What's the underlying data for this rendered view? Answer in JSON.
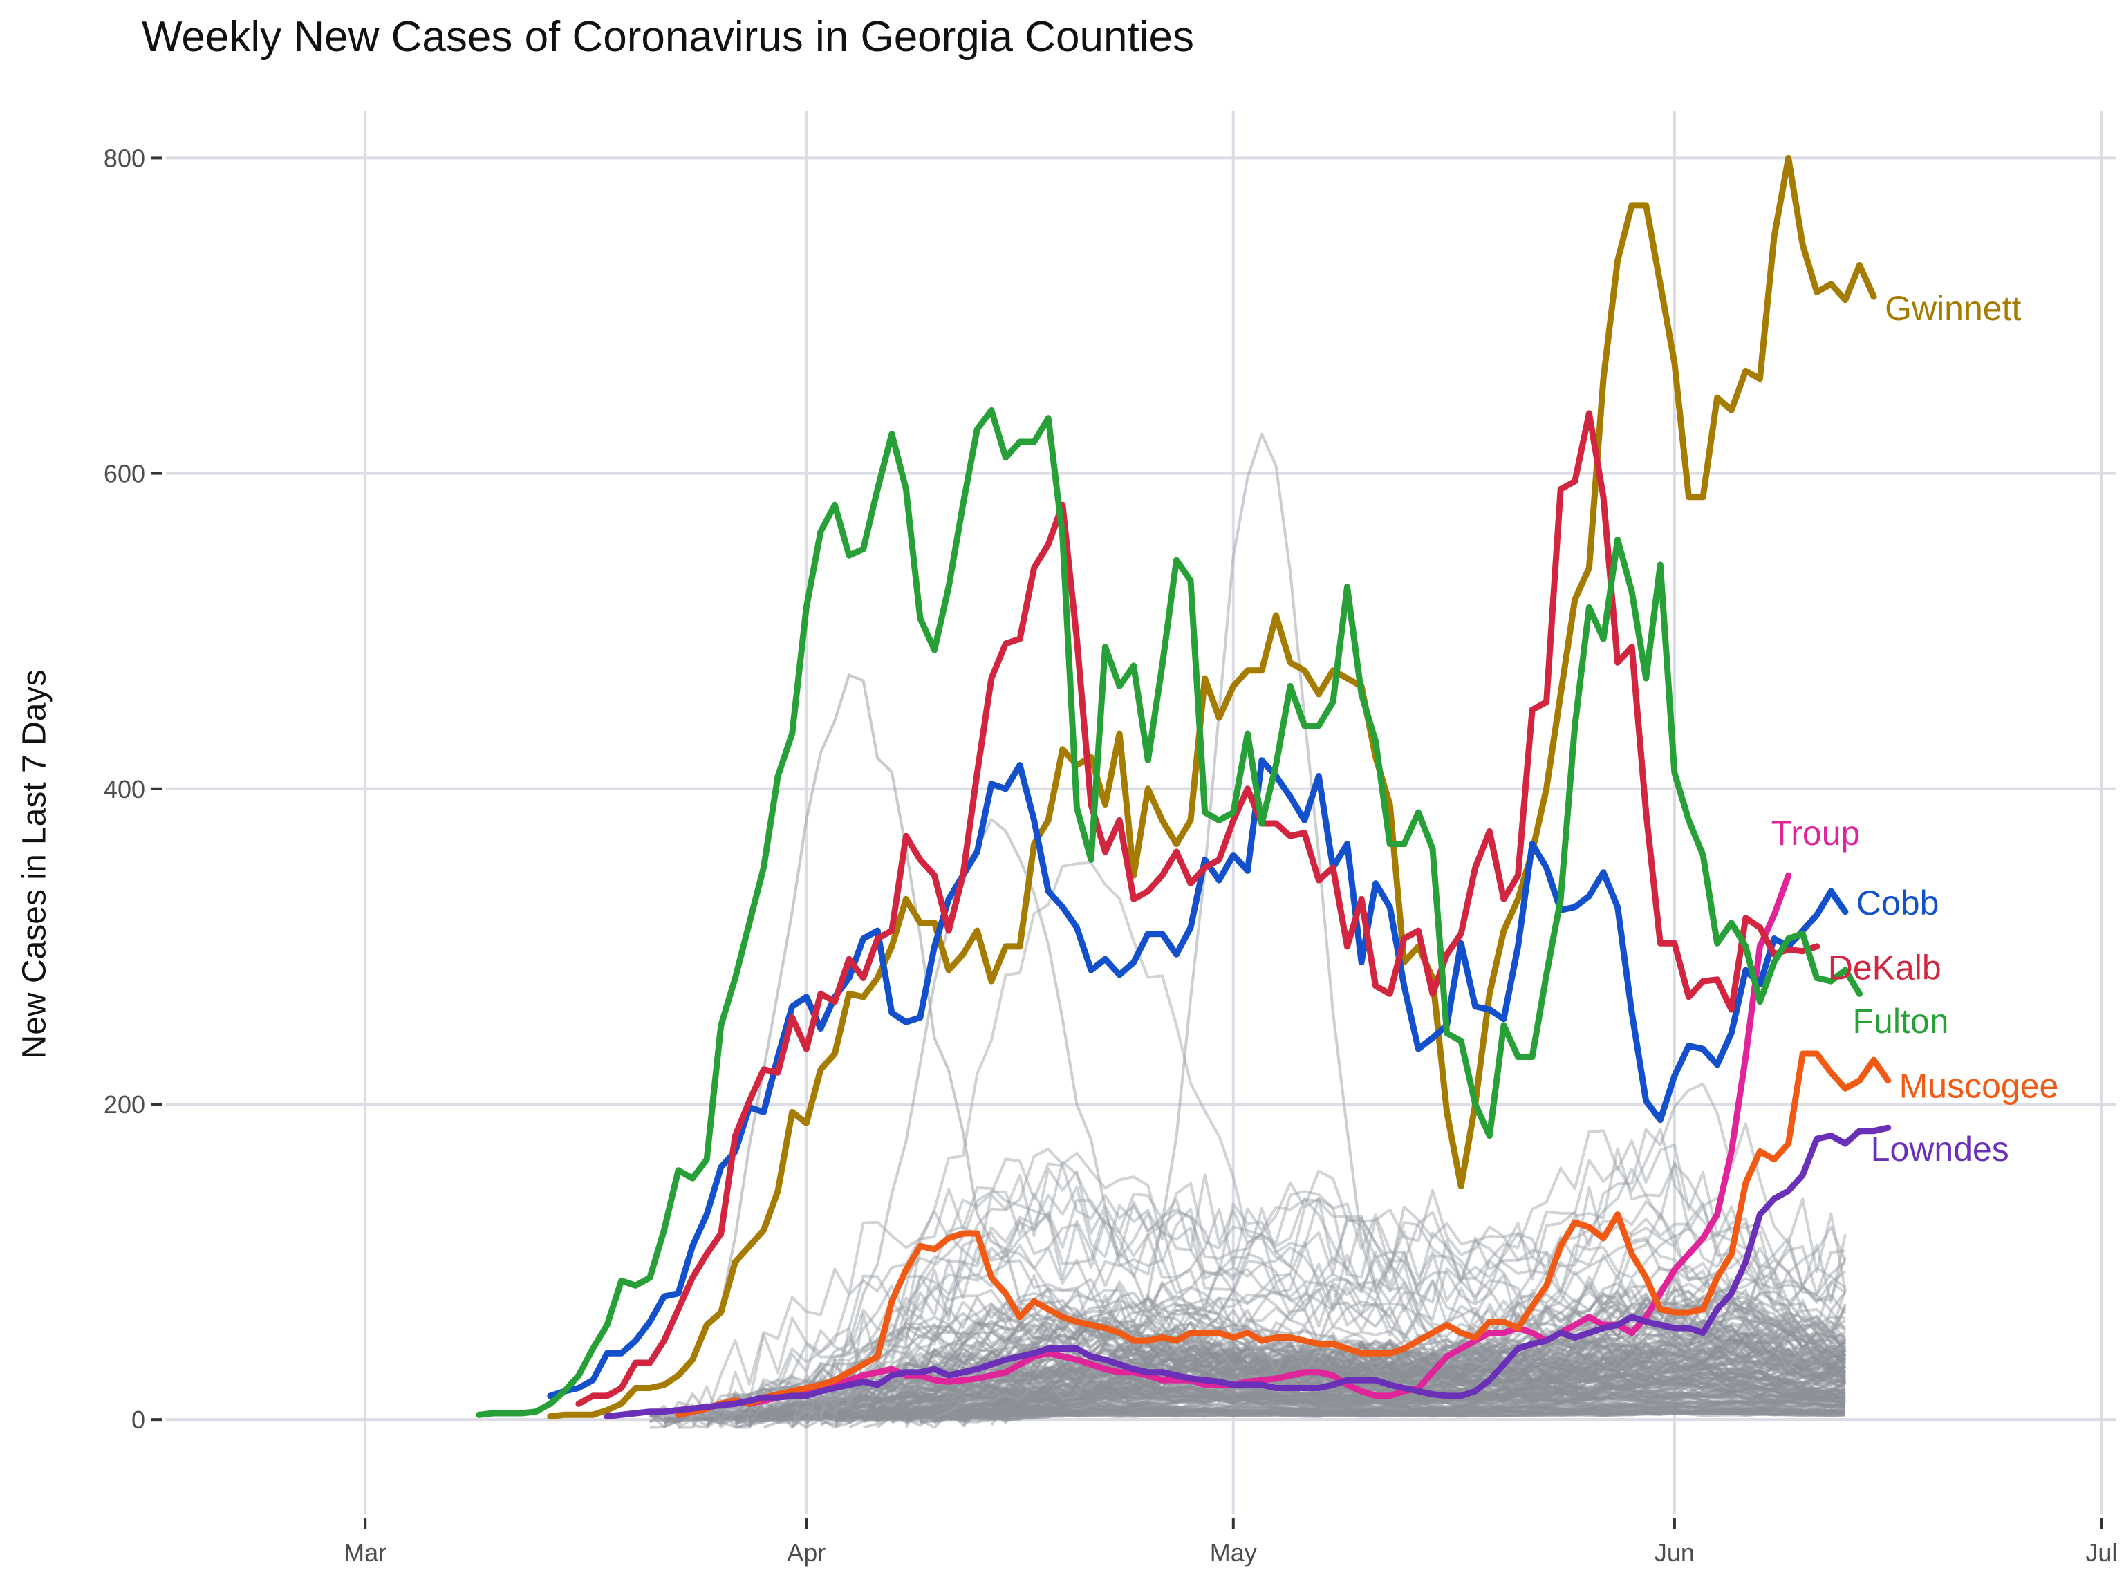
{
  "chart_data": {
    "type": "line",
    "title": "Weekly New Cases of Coronavirus in Georgia Counties",
    "xlabel": "",
    "ylabel": "New Cases in Last 7 Days",
    "x_ticks": [
      {
        "label": "Mar",
        "day": 0
      },
      {
        "label": "Apr",
        "day": 31
      },
      {
        "label": "May",
        "day": 61
      },
      {
        "label": "Jun",
        "day": 92
      },
      {
        "label": "Jul",
        "day": 122
      }
    ],
    "y_ticks": [
      0,
      200,
      400,
      600,
      800
    ],
    "xlim": [
      -14,
      123
    ],
    "ylim": [
      -60,
      830
    ],
    "grid": true,
    "highlight_series": [
      {
        "name": "Gwinnett",
        "color": "#a67c00",
        "start_day": 13,
        "values": [
          2,
          3,
          3,
          3,
          6,
          10,
          20,
          20,
          22,
          28,
          38,
          60,
          68,
          100,
          110,
          120,
          145,
          195,
          188,
          222,
          232,
          270,
          268,
          280,
          300,
          330,
          315,
          315,
          285,
          295,
          310,
          278,
          300,
          300,
          365,
          380,
          425,
          415,
          420,
          390,
          435,
          345,
          400,
          380,
          365,
          380,
          470,
          445,
          465,
          475,
          475,
          510,
          480,
          475,
          460,
          475,
          470,
          465,
          420,
          390,
          290,
          300,
          280,
          195,
          148,
          200,
          270,
          310,
          330,
          360,
          400,
          460,
          520,
          540,
          660,
          735,
          770,
          770,
          720,
          670,
          585,
          585,
          648,
          640,
          665,
          660,
          750,
          800,
          745,
          715,
          720,
          710,
          732,
          712
        ],
        "label_y": 705
      },
      {
        "name": "Troup",
        "color": "#e0259a",
        "start_day": 22,
        "values": [
          3,
          5,
          7,
          10,
          12,
          10,
          12,
          14,
          15,
          18,
          20,
          22,
          25,
          28,
          30,
          32,
          28,
          28,
          25,
          24,
          25,
          26,
          28,
          30,
          35,
          40,
          42,
          40,
          38,
          35,
          32,
          30,
          30,
          28,
          25,
          25,
          25,
          22,
          22,
          22,
          24,
          25,
          26,
          28,
          30,
          30,
          28,
          22,
          18,
          15,
          15,
          18,
          20,
          30,
          40,
          45,
          50,
          55,
          55,
          58,
          55,
          50,
          55,
          60,
          65,
          60,
          60,
          55,
          65,
          80,
          95,
          105,
          115,
          130,
          170,
          230,
          300,
          320,
          345
        ],
        "label_y": 360
      },
      {
        "name": "Cobb",
        "color": "#1250cc",
        "start_day": 13,
        "values": [
          15,
          18,
          20,
          25,
          42,
          42,
          50,
          62,
          78,
          80,
          110,
          130,
          160,
          170,
          198,
          195,
          230,
          262,
          268,
          248,
          268,
          280,
          305,
          310,
          258,
          252,
          255,
          300,
          330,
          345,
          360,
          403,
          400,
          415,
          380,
          335,
          325,
          312,
          285,
          292,
          282,
          290,
          308,
          308,
          295,
          312,
          355,
          342,
          358,
          348,
          418,
          408,
          395,
          380,
          408,
          350,
          365,
          290,
          340,
          325,
          275,
          235,
          242,
          250,
          302,
          262,
          260,
          254,
          300,
          365,
          350,
          323,
          325,
          332,
          347,
          325,
          258,
          202,
          190,
          218,
          237,
          235,
          225,
          245,
          285,
          276,
          305,
          300,
          310,
          320,
          335,
          322
        ],
        "label_y": 328
      },
      {
        "name": "DeKalb",
        "color": "#d22640",
        "start_day": 15,
        "values": [
          10,
          15,
          15,
          20,
          36,
          36,
          50,
          70,
          90,
          105,
          118,
          180,
          202,
          222,
          220,
          255,
          235,
          270,
          265,
          292,
          280,
          305,
          310,
          370,
          355,
          345,
          310,
          345,
          410,
          470,
          492,
          495,
          540,
          555,
          580,
          495,
          390,
          360,
          380,
          330,
          335,
          345,
          360,
          340,
          350,
          355,
          380,
          400,
          378,
          378,
          370,
          372,
          342,
          350,
          300,
          330,
          275,
          270,
          305,
          310,
          270,
          295,
          308,
          350,
          373,
          330,
          345,
          450,
          455,
          590,
          595,
          638,
          585,
          480,
          490,
          385,
          302,
          302,
          268,
          278,
          279,
          260,
          318,
          312,
          295,
          298,
          297,
          300
        ],
        "label_y": 287
      },
      {
        "name": "Fulton",
        "color": "#27a038",
        "start_day": 8,
        "values": [
          3,
          4,
          4,
          4,
          5,
          10,
          18,
          28,
          45,
          60,
          88,
          85,
          90,
          120,
          158,
          153,
          165,
          250,
          280,
          315,
          350,
          408,
          435,
          515,
          563,
          580,
          548,
          552,
          590,
          625,
          590,
          508,
          488,
          528,
          580,
          628,
          640,
          610,
          620,
          620,
          635,
          560,
          388,
          355,
          490,
          465,
          478,
          418,
          478,
          545,
          532,
          385,
          380,
          385,
          435,
          378,
          415,
          465,
          440,
          440,
          455,
          528,
          460,
          430,
          365,
          365,
          385,
          362,
          245,
          240,
          200,
          180,
          250,
          230,
          230,
          282,
          330,
          440,
          515,
          495,
          558,
          525,
          470,
          542,
          410,
          380,
          358,
          302,
          315,
          300,
          265,
          290,
          305,
          308,
          280,
          278,
          285,
          270
        ],
        "label_y": 253
      },
      {
        "name": "Muscogee",
        "color": "#f05a14",
        "start_day": 22,
        "values": [
          3,
          5,
          7,
          10,
          12,
          10,
          14,
          16,
          18,
          20,
          22,
          25,
          30,
          35,
          40,
          75,
          95,
          110,
          108,
          115,
          118,
          118,
          90,
          80,
          65,
          75,
          70,
          65,
          62,
          60,
          58,
          55,
          50,
          50,
          52,
          50,
          55,
          55,
          55,
          52,
          55,
          50,
          52,
          52,
          50,
          48,
          48,
          45,
          42,
          42,
          42,
          45,
          50,
          55,
          60,
          55,
          52,
          62,
          62,
          58,
          72,
          85,
          110,
          125,
          122,
          115,
          130,
          105,
          90,
          70,
          68,
          68,
          70,
          90,
          105,
          150,
          170,
          165,
          175,
          232,
          232,
          220,
          210,
          215,
          228,
          215
        ],
        "label_y": 212
      },
      {
        "name": "Lowndes",
        "color": "#6a30b8",
        "start_day": 17,
        "values": [
          2,
          3,
          4,
          5,
          5,
          6,
          7,
          8,
          9,
          10,
          12,
          14,
          14,
          15,
          15,
          18,
          20,
          22,
          24,
          22,
          28,
          30,
          30,
          32,
          28,
          30,
          32,
          35,
          38,
          40,
          42,
          45,
          45,
          45,
          40,
          38,
          35,
          32,
          30,
          30,
          28,
          26,
          25,
          24,
          22,
          22,
          22,
          20,
          20,
          20,
          20,
          22,
          25,
          25,
          25,
          22,
          20,
          18,
          16,
          15,
          15,
          18,
          25,
          35,
          45,
          48,
          50,
          55,
          52,
          55,
          58,
          60,
          65,
          62,
          60,
          58,
          58,
          55,
          70,
          80,
          100,
          130,
          140,
          145,
          155,
          178,
          180,
          175,
          183,
          183,
          185
        ],
        "label_y": 172
      }
    ]
  }
}
